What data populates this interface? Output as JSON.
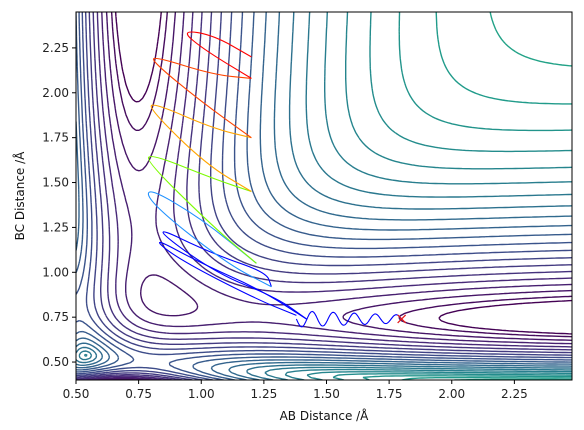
{
  "chart_data": {
    "type": "contour",
    "xlabel": "AB Distance /Å",
    "ylabel": "BC Distance /Å",
    "xlim": [
      0.5,
      2.48
    ],
    "ylim": [
      0.4,
      2.45
    ],
    "x_ticks": [
      "0.50",
      "0.75",
      "1.00",
      "1.25",
      "1.50",
      "1.75",
      "2.00",
      "2.25"
    ],
    "y_ticks": [
      "0.50",
      "0.75",
      "1.00",
      "1.25",
      "1.50",
      "1.75",
      "2.00",
      "2.25"
    ],
    "grid": false,
    "surface": {
      "model": "symmetric two-channel potential energy surface",
      "level_count": 36,
      "colormap": "viridis"
    },
    "trajectory": {
      "start": [
        1.8,
        0.74
      ],
      "end_marker": "x",
      "end_marker_color": "#e41a1c",
      "path_description": "oscillating trajectory along BC ≈ 0.74 Å approaching from AB = 1.8 Å, then recrossing the interaction region with multiple bounces"
    },
    "colors": {
      "levels_low": "#440154",
      "levels_high": "#fde725",
      "trajectory_palette": [
        "#0000ff",
        "#1e90ff",
        "#7cfc00",
        "#ffa500",
        "#ff4500",
        "#ff0000"
      ]
    }
  }
}
